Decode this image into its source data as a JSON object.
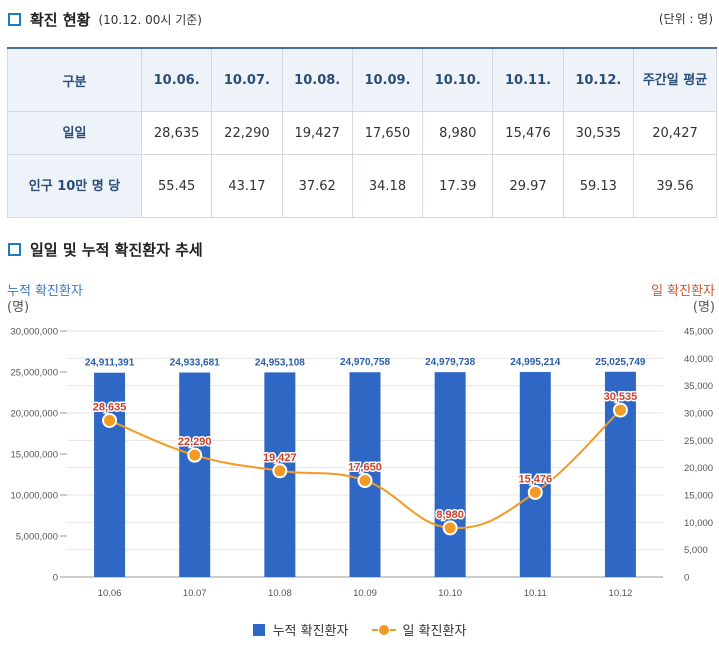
{
  "section1": {
    "title": "확진 현황",
    "subtitle": "(10.12. 00시 기준)",
    "unit": "(단위 : 명)"
  },
  "table": {
    "corner": "구분",
    "columns": [
      "10.06.",
      "10.07.",
      "10.08.",
      "10.09.",
      "10.10.",
      "10.11.",
      "10.12.",
      "주간일 평균"
    ],
    "rows": [
      {
        "label": "일일",
        "values": [
          "28,635",
          "22,290",
          "19,427",
          "17,650",
          "8,980",
          "15,476",
          "30,535",
          "20,427"
        ]
      },
      {
        "label": "인구 10만 명 당",
        "values": [
          "55.45",
          "43.17",
          "37.62",
          "34.18",
          "17.39",
          "29.97",
          "59.13",
          "39.56"
        ]
      }
    ]
  },
  "section2": {
    "title": "일일 및 누적 확진환자 추세"
  },
  "axis_titles": {
    "left": "누적 확진환자",
    "left_unit": "(명)",
    "right": "일 확진환자",
    "right_unit": "(명)"
  },
  "legend": {
    "bar": "누적 확진환자",
    "line": "일 확진환자"
  },
  "chart_data": {
    "type": "bar",
    "title": "일일 및 누적 확진환자 추세",
    "categories": [
      "10.06",
      "10.07",
      "10.08",
      "10.09",
      "10.10",
      "10.11",
      "10.12"
    ],
    "series": [
      {
        "name": "누적 확진환자",
        "type": "bar",
        "axis": "left",
        "values": [
          24911391,
          24933681,
          24953108,
          24970758,
          24979738,
          24995214,
          25025749
        ],
        "labels": [
          "24,911,391",
          "24,933,681",
          "24,953,108",
          "24,970,758",
          "24,979,738",
          "24,995,214",
          "25,025,749"
        ]
      },
      {
        "name": "일 확진환자",
        "type": "line",
        "axis": "right",
        "values": [
          28635,
          22290,
          19427,
          17650,
          8980,
          15476,
          30535
        ],
        "labels": [
          "28,635",
          "22,290",
          "19,427",
          "17,650",
          "8,980",
          "15,476",
          "30,535"
        ]
      }
    ],
    "ylim_left": [
      0,
      30000000
    ],
    "yticks_left": [
      "30,000,000",
      "25,000,000",
      "20,000,000",
      "15,000,000",
      "10,000,000",
      "5,000,000",
      "0"
    ],
    "ylim_right": [
      0,
      45000
    ],
    "yticks_right": [
      "45,000",
      "40,000",
      "35,000",
      "30,000",
      "25,000",
      "20,000",
      "15,000",
      "10,000",
      "5,000",
      "0"
    ],
    "grid": true,
    "legend_position": "bottom",
    "colors": {
      "bar": "#2f67c5",
      "line": "#f39a24",
      "bar_label": "#2a5fa8",
      "line_label": "#d0402b"
    }
  }
}
